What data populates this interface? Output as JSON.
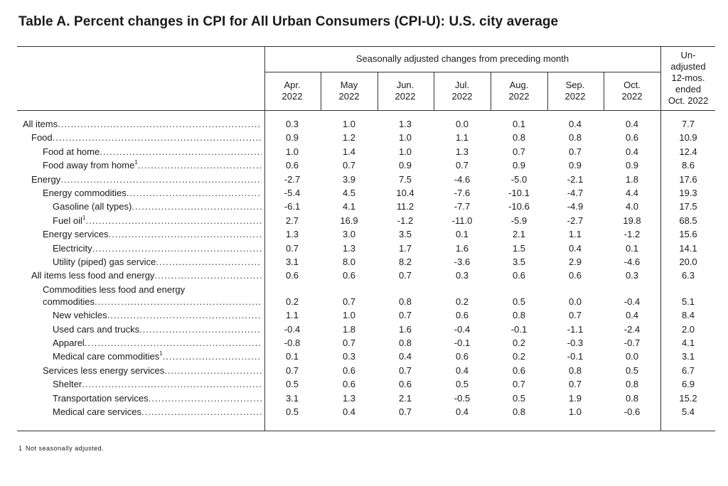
{
  "title": "Table A. Percent changes in CPI for All Urban Consumers (CPI-U): U.S. city average",
  "header": {
    "seasonal_span": "Seasonally adjusted changes from preceding month",
    "months": [
      {
        "l1": "Apr.",
        "l2": "2022"
      },
      {
        "l1": "May",
        "l2": "2022"
      },
      {
        "l1": "Jun.",
        "l2": "2022"
      },
      {
        "l1": "Jul.",
        "l2": "2022"
      },
      {
        "l1": "Aug.",
        "l2": "2022"
      },
      {
        "l1": "Sep.",
        "l2": "2022"
      },
      {
        "l1": "Oct.",
        "l2": "2022"
      }
    ],
    "unadjusted": [
      "Un-",
      "adjusted",
      "12-mos.",
      "ended",
      "Oct. 2022"
    ]
  },
  "rows": [
    {
      "label": "All items",
      "indent": 0,
      "values": [
        "0.3",
        "1.0",
        "1.3",
        "0.0",
        "0.1",
        "0.4",
        "0.4",
        "7.7"
      ]
    },
    {
      "label": "Food",
      "indent": 1,
      "values": [
        "0.9",
        "1.2",
        "1.0",
        "1.1",
        "0.8",
        "0.8",
        "0.6",
        "10.9"
      ]
    },
    {
      "label": "Food at home",
      "indent": 2,
      "values": [
        "1.0",
        "1.4",
        "1.0",
        "1.3",
        "0.7",
        "0.7",
        "0.4",
        "12.4"
      ]
    },
    {
      "label": "Food away from home",
      "sup": "1",
      "indent": 2,
      "values": [
        "0.6",
        "0.7",
        "0.9",
        "0.7",
        "0.9",
        "0.9",
        "0.9",
        "8.6"
      ]
    },
    {
      "label": "Energy",
      "indent": 1,
      "values": [
        "-2.7",
        "3.9",
        "7.5",
        "-4.6",
        "-5.0",
        "-2.1",
        "1.8",
        "17.6"
      ]
    },
    {
      "label": "Energy commodities",
      "indent": 2,
      "values": [
        "-5.4",
        "4.5",
        "10.4",
        "-7.6",
        "-10.1",
        "-4.7",
        "4.4",
        "19.3"
      ]
    },
    {
      "label": "Gasoline (all types)",
      "indent": 3,
      "values": [
        "-6.1",
        "4.1",
        "11.2",
        "-7.7",
        "-10.6",
        "-4.9",
        "4.0",
        "17.5"
      ]
    },
    {
      "label": "Fuel oil",
      "sup": "1",
      "indent": 3,
      "values": [
        "2.7",
        "16.9",
        "-1.2",
        "-11.0",
        "-5.9",
        "-2.7",
        "19.8",
        "68.5"
      ]
    },
    {
      "label": "Energy services",
      "indent": 2,
      "values": [
        "1.3",
        "3.0",
        "3.5",
        "0.1",
        "2.1",
        "1.1",
        "-1.2",
        "15.6"
      ]
    },
    {
      "label": "Electricity",
      "indent": 3,
      "values": [
        "0.7",
        "1.3",
        "1.7",
        "1.6",
        "1.5",
        "0.4",
        "0.1",
        "14.1"
      ]
    },
    {
      "label": "Utility (piped) gas service",
      "indent": 3,
      "values": [
        "3.1",
        "8.0",
        "8.2",
        "-3.6",
        "3.5",
        "2.9",
        "-4.6",
        "20.0"
      ]
    },
    {
      "label": "All items less food and energy",
      "indent": 1,
      "values": [
        "0.6",
        "0.6",
        "0.7",
        "0.3",
        "0.6",
        "0.6",
        "0.3",
        "6.3"
      ]
    },
    {
      "label": "Commodities less food and energy",
      "label2": "commodities",
      "indent": 2,
      "values": [
        "0.2",
        "0.7",
        "0.8",
        "0.2",
        "0.5",
        "0.0",
        "-0.4",
        "5.1"
      ]
    },
    {
      "label": "New vehicles",
      "indent": 3,
      "values": [
        "1.1",
        "1.0",
        "0.7",
        "0.6",
        "0.8",
        "0.7",
        "0.4",
        "8.4"
      ]
    },
    {
      "label": "Used cars and trucks",
      "indent": 3,
      "values": [
        "-0.4",
        "1.8",
        "1.6",
        "-0.4",
        "-0.1",
        "-1.1",
        "-2.4",
        "2.0"
      ]
    },
    {
      "label": "Apparel",
      "indent": 3,
      "values": [
        "-0.8",
        "0.7",
        "0.8",
        "-0.1",
        "0.2",
        "-0.3",
        "-0.7",
        "4.1"
      ]
    },
    {
      "label": "Medical care commodities",
      "sup": "1",
      "indent": 3,
      "values": [
        "0.1",
        "0.3",
        "0.4",
        "0.6",
        "0.2",
        "-0.1",
        "0.0",
        "3.1"
      ]
    },
    {
      "label": "Services less energy services",
      "indent": 2,
      "values": [
        "0.7",
        "0.6",
        "0.7",
        "0.4",
        "0.6",
        "0.8",
        "0.5",
        "6.7"
      ]
    },
    {
      "label": "Shelter",
      "indent": 3,
      "values": [
        "0.5",
        "0.6",
        "0.6",
        "0.5",
        "0.7",
        "0.7",
        "0.8",
        "6.9"
      ]
    },
    {
      "label": "Transportation services",
      "indent": 3,
      "values": [
        "3.1",
        "1.3",
        "2.1",
        "-0.5",
        "0.5",
        "1.9",
        "0.8",
        "15.2"
      ]
    },
    {
      "label": "Medical care services",
      "indent": 3,
      "values": [
        "0.5",
        "0.4",
        "0.7",
        "0.4",
        "0.8",
        "1.0",
        "-0.6",
        "5.4"
      ]
    }
  ],
  "footnote": {
    "mark": "1",
    "text": "Not seasonally adjusted."
  }
}
